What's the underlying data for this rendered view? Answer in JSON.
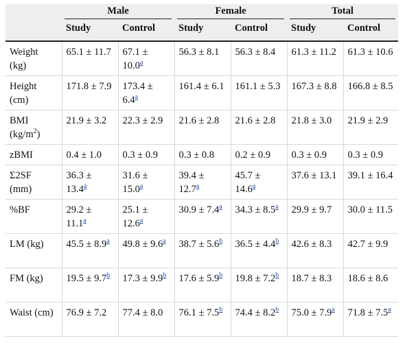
{
  "groups": [
    "Male",
    "Female",
    "Total"
  ],
  "subheaders": [
    "Study",
    "Control",
    "Study",
    "Control",
    "Study",
    "Control"
  ],
  "rows": [
    {
      "label_main": "Weight",
      "label_sub": "(kg)",
      "cells": [
        {
          "v": "65.1 ± 11.7",
          "n": ""
        },
        {
          "v": "67.1 ± 10.0",
          "n": "a"
        },
        {
          "v": "56.3 ± 8.1",
          "n": ""
        },
        {
          "v": "56.3 ± 8.4",
          "n": ""
        },
        {
          "v": "61.3 ± 11.2",
          "n": ""
        },
        {
          "v": "61.3 ± 10.6",
          "n": ""
        }
      ]
    },
    {
      "label_main": "Height",
      "label_sub": "(cm)",
      "cells": [
        {
          "v": "171.8 ± 7.9",
          "n": ""
        },
        {
          "v": "173.4 ± 6.4",
          "n": "a"
        },
        {
          "v": "161.4 ± 6.1",
          "n": ""
        },
        {
          "v": "161.1 ± 5.3",
          "n": ""
        },
        {
          "v": "167.3 ± 8.8",
          "n": ""
        },
        {
          "v": "166.8 ± 8.5",
          "n": ""
        }
      ]
    },
    {
      "label_main": "BMI",
      "label_sub": "(kg/m",
      "label_sup": "2",
      "label_close": ")",
      "cells": [
        {
          "v": "21.9 ± 3.2",
          "n": ""
        },
        {
          "v": "22.3 ± 2.9",
          "n": ""
        },
        {
          "v": "21.6 ± 2.8",
          "n": ""
        },
        {
          "v": "21.6 ± 2.8",
          "n": ""
        },
        {
          "v": "21.8 ± 3.0",
          "n": ""
        },
        {
          "v": "21.9 ± 2.9",
          "n": ""
        }
      ]
    },
    {
      "label_main": "zBMI",
      "label_sub": "",
      "cells": [
        {
          "v": "0.4 ± 1.0",
          "n": ""
        },
        {
          "v": "0.3 ± 0.9",
          "n": ""
        },
        {
          "v": "0.3 ± 0.8",
          "n": ""
        },
        {
          "v": "0.2 ± 0.9",
          "n": ""
        },
        {
          "v": "0.3 ± 0.9",
          "n": ""
        },
        {
          "v": "0.3 ± 0.9",
          "n": ""
        }
      ]
    },
    {
      "label_main": "Σ2SF",
      "label_sub": "(mm)",
      "cells": [
        {
          "v": "36.3 ± 13.4",
          "n": "a"
        },
        {
          "v": "31.6 ± 15.0",
          "n": "a"
        },
        {
          "v": "39.4 ± 12.7",
          "n": "a"
        },
        {
          "v": "45.7 ± 14.6",
          "n": "a"
        },
        {
          "v": "37.6 ± 13.1",
          "n": ""
        },
        {
          "v": "39.1 ± 16.4",
          "n": ""
        }
      ]
    },
    {
      "label_main": "%BF",
      "label_sub": "",
      "cells": [
        {
          "v": "29.2 ± 11.1",
          "n": "a"
        },
        {
          "v": "25.1 ± 12.6",
          "n": "a"
        },
        {
          "v": "30.9 ± 7.4",
          "n": "a"
        },
        {
          "v": "34.3 ± 8.5",
          "n": "a"
        },
        {
          "v": "29.9 ± 9.7",
          "n": ""
        },
        {
          "v": "30.0 ± 11.5",
          "n": ""
        }
      ]
    },
    {
      "label_main": "LM (kg)",
      "label_sub": "",
      "cells": [
        {
          "v": "45.5 ± 8.9",
          "n": "a"
        },
        {
          "v": "49.8 ± 9.6",
          "n": "a"
        },
        {
          "v": "38.7 ± 5.6",
          "n": "b"
        },
        {
          "v": "36.5 ± 4.4",
          "n": "b"
        },
        {
          "v": "42.6 ± 8.3",
          "n": ""
        },
        {
          "v": "42.7 ± 9.9",
          "n": ""
        }
      ]
    },
    {
      "label_main": "FM (kg)",
      "label_sub": "",
      "cells": [
        {
          "v": "19.5 ± 9.7",
          "n": "b"
        },
        {
          "v": "17.3 ± 9.9",
          "n": "b"
        },
        {
          "v": "17.6 ± 5.9",
          "n": "b"
        },
        {
          "v": "19.8 ± 7.2",
          "n": "b"
        },
        {
          "v": "18.7 ± 8.3",
          "n": ""
        },
        {
          "v": "18.6 ± 8.6",
          "n": ""
        }
      ]
    },
    {
      "label_main": "Waist (cm)",
      "label_sub": "",
      "cells": [
        {
          "v": "76.9 ± 7.2",
          "n": ""
        },
        {
          "v": "77.4 ± 8.0",
          "n": ""
        },
        {
          "v": "76.1 ± 7.5",
          "n": "b"
        },
        {
          "v": "74.4 ± 8.2",
          "n": "b"
        },
        {
          "v": "75.0 ± 7.9",
          "n": "a"
        },
        {
          "v": "71.8 ± 7.5",
          "n": "a"
        }
      ]
    }
  ]
}
